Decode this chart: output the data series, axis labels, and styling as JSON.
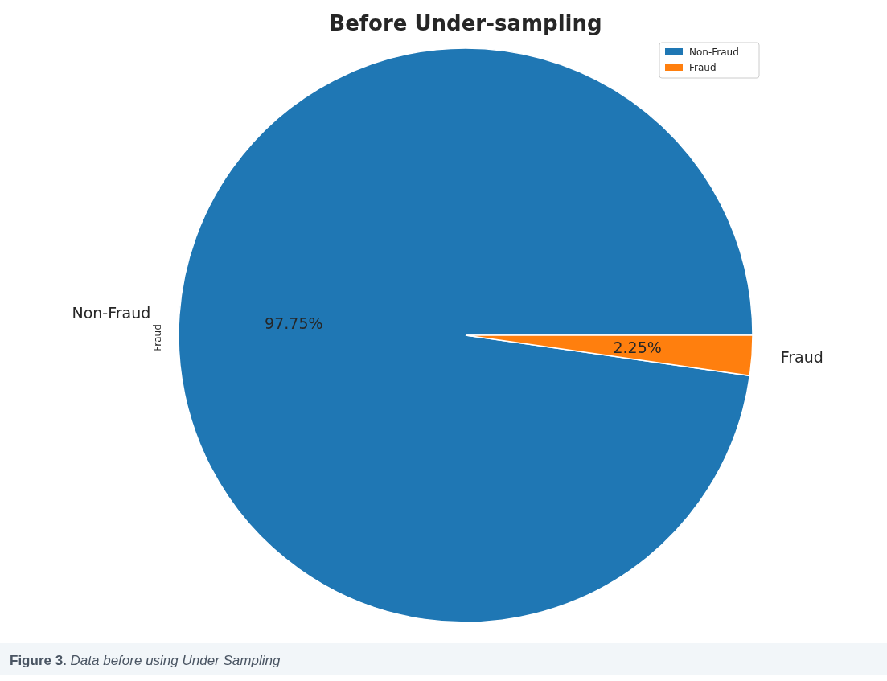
{
  "chart_data": {
    "type": "pie",
    "title": "Before Under-sampling",
    "ylabel": "Fraud",
    "categories": [
      "Non-Fraud",
      "Fraud"
    ],
    "values": [
      97.75,
      2.25
    ],
    "colors": [
      "#1f77b4",
      "#ff7f0e"
    ],
    "value_labels": [
      "97.75%",
      "2.25%"
    ],
    "legend": "top right",
    "annotations": [
      "Figure 3. Data before using Under Sampling"
    ]
  }
}
